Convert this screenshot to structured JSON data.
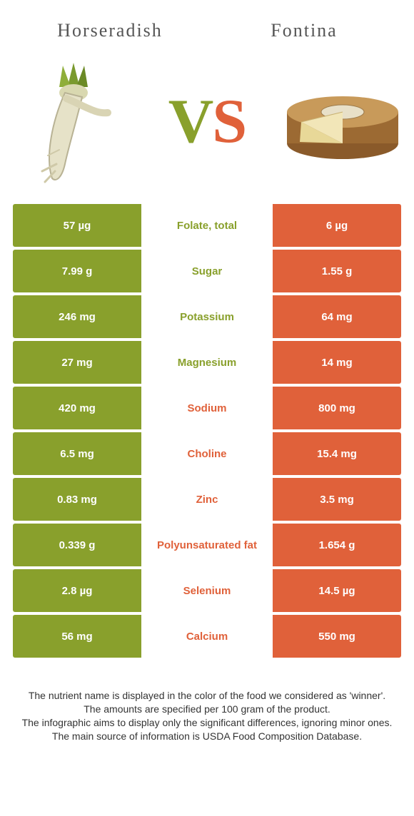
{
  "colors": {
    "green": "#89a02c",
    "orange": "#e0613a",
    "text_gray": "#555555",
    "body_text": "#333333",
    "white": "#ffffff"
  },
  "header": {
    "left_title": "Horseradish",
    "right_title": "Fontina",
    "vs_v": "V",
    "vs_s": "S"
  },
  "rows": [
    {
      "left": "57 µg",
      "label": "Folate, total",
      "right": "6 µg",
      "winner": "left"
    },
    {
      "left": "7.99 g",
      "label": "Sugar",
      "right": "1.55 g",
      "winner": "left"
    },
    {
      "left": "246 mg",
      "label": "Potassium",
      "right": "64 mg",
      "winner": "left"
    },
    {
      "left": "27 mg",
      "label": "Magnesium",
      "right": "14 mg",
      "winner": "left"
    },
    {
      "left": "420 mg",
      "label": "Sodium",
      "right": "800 mg",
      "winner": "right"
    },
    {
      "left": "6.5 mg",
      "label": "Choline",
      "right": "15.4 mg",
      "winner": "right"
    },
    {
      "left": "0.83 mg",
      "label": "Zinc",
      "right": "3.5 mg",
      "winner": "right"
    },
    {
      "left": "0.339 g",
      "label": "Polyunsaturated fat",
      "right": "1.654 g",
      "winner": "right"
    },
    {
      "left": "2.8 µg",
      "label": "Selenium",
      "right": "14.5 µg",
      "winner": "right"
    },
    {
      "left": "56 mg",
      "label": "Calcium",
      "right": "550 mg",
      "winner": "right"
    }
  ],
  "disclaimer": {
    "line1": "The nutrient name is displayed in the color of the food we considered as 'winner'.",
    "line2": "The amounts are specified per 100 gram of the product.",
    "line3": "The infographic aims to display only the significant differences, ignoring minor ones.",
    "line4": "The main source of information is USDA Food Composition Database."
  }
}
